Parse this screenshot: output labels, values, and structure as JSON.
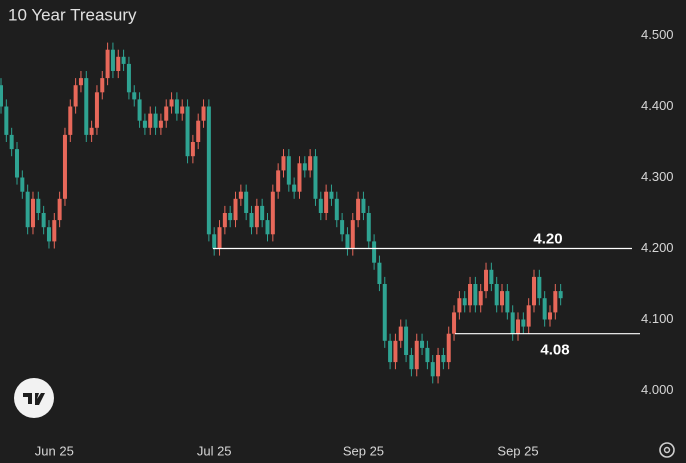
{
  "chart_data": {
    "type": "candlestick",
    "title": "10 Year Treasury",
    "up_color": "#e7685a",
    "down_color": "#2fa392",
    "ylim": [
      3.95,
      4.55
    ],
    "yticks": [
      {
        "value": 4.0,
        "label": "4.000"
      },
      {
        "value": 4.1,
        "label": "4.100"
      },
      {
        "value": 4.2,
        "label": "4.200"
      },
      {
        "value": 4.3,
        "label": "4.300"
      },
      {
        "value": 4.4,
        "label": "4.400"
      },
      {
        "value": 4.5,
        "label": "4.500"
      }
    ],
    "categories": [
      null,
      null,
      null,
      null,
      null,
      null,
      null,
      null,
      null,
      null,
      "Jun 25",
      null,
      null,
      null,
      null,
      null,
      null,
      null,
      null,
      null,
      null,
      null,
      null,
      null,
      null,
      null,
      null,
      null,
      null,
      null,
      null,
      null,
      null,
      null,
      null,
      null,
      null,
      null,
      null,
      null,
      "Jul 25",
      null,
      null,
      null,
      null,
      null,
      null,
      null,
      null,
      null,
      null,
      null,
      null,
      null,
      null,
      null,
      null,
      null,
      null,
      null,
      null,
      null,
      null,
      null,
      null,
      null,
      null,
      null,
      "Sep 25",
      null,
      null,
      null,
      null,
      null,
      null,
      null,
      null,
      null,
      null,
      null,
      null,
      null,
      null,
      null,
      null,
      null,
      null,
      null,
      null,
      null,
      null,
      null,
      null,
      null,
      null,
      null,
      null,
      "Sep 25",
      null,
      null,
      null,
      null,
      null,
      null,
      null,
      null
    ],
    "open": [
      4.43,
      4.4,
      4.36,
      4.34,
      4.3,
      4.28,
      4.23,
      4.27,
      4.25,
      4.23,
      4.21,
      4.24,
      4.27,
      4.36,
      4.4,
      4.43,
      4.44,
      4.36,
      4.37,
      4.42,
      4.44,
      4.48,
      4.45,
      4.47,
      4.46,
      4.42,
      4.41,
      4.38,
      4.37,
      4.39,
      4.37,
      4.38,
      4.4,
      4.41,
      4.39,
      4.4,
      4.33,
      4.35,
      4.38,
      4.4,
      4.22,
      4.2,
      4.23,
      4.25,
      4.24,
      4.27,
      4.28,
      4.25,
      4.23,
      4.26,
      4.24,
      4.22,
      4.28,
      4.31,
      4.33,
      4.29,
      4.28,
      4.32,
      4.31,
      4.33,
      4.27,
      4.25,
      4.28,
      4.27,
      4.24,
      4.22,
      4.2,
      4.24,
      4.27,
      4.25,
      4.21,
      4.18,
      4.15,
      4.07,
      4.04,
      4.07,
      4.09,
      4.05,
      4.03,
      4.07,
      4.06,
      4.04,
      4.02,
      4.05,
      4.04,
      4.08,
      4.11,
      4.13,
      4.12,
      4.15,
      4.12,
      4.14,
      4.17,
      4.15,
      4.12,
      4.14,
      4.11,
      4.08,
      4.1,
      4.09,
      4.12,
      4.16,
      4.13,
      4.1,
      4.11,
      4.14
    ],
    "high": [
      4.44,
      4.41,
      4.37,
      4.35,
      4.31,
      4.29,
      4.28,
      4.28,
      4.26,
      4.24,
      4.25,
      4.28,
      4.37,
      4.41,
      4.44,
      4.45,
      4.45,
      4.38,
      4.43,
      4.45,
      4.49,
      4.49,
      4.48,
      4.48,
      4.47,
      4.43,
      4.42,
      4.39,
      4.4,
      4.4,
      4.39,
      4.41,
      4.42,
      4.42,
      4.41,
      4.41,
      4.36,
      4.39,
      4.41,
      4.41,
      4.23,
      4.24,
      4.26,
      4.26,
      4.28,
      4.29,
      4.29,
      4.26,
      4.27,
      4.27,
      4.25,
      4.29,
      4.32,
      4.34,
      4.34,
      4.3,
      4.33,
      4.33,
      4.34,
      4.34,
      4.28,
      4.29,
      4.29,
      4.28,
      4.25,
      4.23,
      4.25,
      4.28,
      4.28,
      4.26,
      4.22,
      4.19,
      4.16,
      4.08,
      4.08,
      4.1,
      4.1,
      4.06,
      4.08,
      4.08,
      4.07,
      4.05,
      4.06,
      4.06,
      4.09,
      4.12,
      4.14,
      4.14,
      4.16,
      4.16,
      4.15,
      4.18,
      4.18,
      4.16,
      4.15,
      4.15,
      4.12,
      4.11,
      4.11,
      4.13,
      4.17,
      4.17,
      4.14,
      4.12,
      4.15,
      4.15
    ],
    "low": [
      4.39,
      4.35,
      4.33,
      4.29,
      4.27,
      4.22,
      4.22,
      4.24,
      4.22,
      4.2,
      4.2,
      4.23,
      4.26,
      4.35,
      4.39,
      4.42,
      4.35,
      4.35,
      4.36,
      4.41,
      4.43,
      4.44,
      4.44,
      4.45,
      4.41,
      4.4,
      4.37,
      4.36,
      4.36,
      4.36,
      4.36,
      4.37,
      4.39,
      4.38,
      4.38,
      4.32,
      4.32,
      4.34,
      4.37,
      4.21,
      4.19,
      4.19,
      4.22,
      4.23,
      4.23,
      4.26,
      4.24,
      4.22,
      4.22,
      4.23,
      4.21,
      4.21,
      4.27,
      4.3,
      4.28,
      4.27,
      4.27,
      4.3,
      4.3,
      4.26,
      4.24,
      4.24,
      4.26,
      4.23,
      4.21,
      4.19,
      4.19,
      4.23,
      4.24,
      4.2,
      4.17,
      4.14,
      4.06,
      4.03,
      4.03,
      4.06,
      4.04,
      4.02,
      4.02,
      4.05,
      4.03,
      4.01,
      4.01,
      4.03,
      4.03,
      4.07,
      4.1,
      4.11,
      4.11,
      4.11,
      4.11,
      4.13,
      4.14,
      4.11,
      4.11,
      4.1,
      4.07,
      4.07,
      4.08,
      4.08,
      4.11,
      4.12,
      4.09,
      4.09,
      4.1,
      4.12
    ],
    "close": [
      4.4,
      4.36,
      4.34,
      4.3,
      4.28,
      4.23,
      4.27,
      4.25,
      4.23,
      4.21,
      4.24,
      4.27,
      4.36,
      4.4,
      4.43,
      4.44,
      4.36,
      4.37,
      4.42,
      4.44,
      4.48,
      4.45,
      4.47,
      4.46,
      4.42,
      4.41,
      4.38,
      4.37,
      4.39,
      4.37,
      4.38,
      4.4,
      4.41,
      4.39,
      4.4,
      4.33,
      4.35,
      4.38,
      4.4,
      4.22,
      4.2,
      4.23,
      4.25,
      4.24,
      4.27,
      4.28,
      4.25,
      4.23,
      4.26,
      4.24,
      4.22,
      4.28,
      4.31,
      4.33,
      4.29,
      4.28,
      4.32,
      4.31,
      4.33,
      4.27,
      4.25,
      4.28,
      4.27,
      4.24,
      4.22,
      4.2,
      4.24,
      4.27,
      4.25,
      4.21,
      4.18,
      4.15,
      4.07,
      4.04,
      4.07,
      4.09,
      4.05,
      4.03,
      4.07,
      4.06,
      4.04,
      4.02,
      4.05,
      4.04,
      4.08,
      4.11,
      4.13,
      4.12,
      4.15,
      4.12,
      4.14,
      4.17,
      4.15,
      4.12,
      4.14,
      4.11,
      4.08,
      4.1,
      4.09,
      4.12,
      4.16,
      4.13,
      4.1,
      4.11,
      4.14,
      4.13
    ],
    "levels": [
      {
        "value": 4.2,
        "label": "4.20"
      },
      {
        "value": 4.08,
        "label": "4.08"
      }
    ]
  }
}
